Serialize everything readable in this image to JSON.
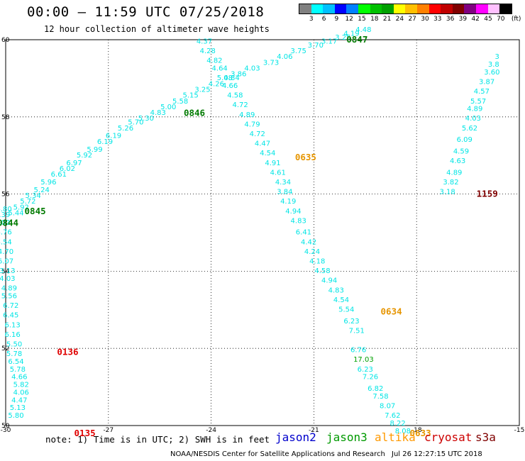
{
  "title": "00:00 – 11:59 UTC 07/25/2018",
  "subtitle": "12 hour collection of altimeter wave heights",
  "colorbar": {
    "colors": [
      "#808080",
      "#00ffff",
      "#00c0ff",
      "#0000ff",
      "#0080ff",
      "#00ff00",
      "#00c000",
      "#00a000",
      "#ffff00",
      "#ffc000",
      "#ff8000",
      "#ff0000",
      "#c00000",
      "#800000",
      "#800080",
      "#ff00ff",
      "#ffc0ff",
      "#000000"
    ],
    "labels": [
      "3",
      "6",
      "9",
      "12",
      "15",
      "18",
      "21",
      "24",
      "27",
      "30",
      "33",
      "36",
      "39",
      "42",
      "45",
      "70",
      "(ft)"
    ]
  },
  "map": {
    "lon_ticks": [
      "-30",
      "-27",
      "-24",
      "-21",
      "-18",
      "-15"
    ],
    "lat_ticks": [
      "60",
      "58",
      "56",
      "54",
      "52",
      "50"
    ],
    "lon_range": [
      -30,
      -15
    ],
    "lat_range": [
      50,
      60
    ],
    "grid": "dotted"
  },
  "tracks": [
    {
      "satellite": "jason3",
      "color": "#00e5e5",
      "points": [
        {
          "lon": -29.7,
          "lat": 50.2,
          "v": "5.80"
        },
        {
          "lon": -29.65,
          "lat": 50.4,
          "v": "5.13"
        },
        {
          "lon": -29.6,
          "lat": 50.6,
          "v": "4.47"
        },
        {
          "lon": -29.55,
          "lat": 50.8,
          "v": "4.06"
        },
        {
          "lon": -29.55,
          "lat": 51.0,
          "v": "5.82"
        },
        {
          "lon": -29.6,
          "lat": 51.2,
          "v": "4.66"
        },
        {
          "lon": -29.65,
          "lat": 51.4,
          "v": "5.78"
        },
        {
          "lon": -29.7,
          "lat": 51.6,
          "v": "6.54"
        },
        {
          "lon": -29.75,
          "lat": 51.8,
          "v": "5.78"
        },
        {
          "lon": -29.75,
          "lat": 52.05,
          "v": "5.50"
        },
        {
          "lon": -29.8,
          "lat": 52.3,
          "v": "6.16"
        },
        {
          "lon": -29.8,
          "lat": 52.55,
          "v": "6.13"
        },
        {
          "lon": -29.85,
          "lat": 52.8,
          "v": "6.45"
        },
        {
          "lon": -29.85,
          "lat": 53.05,
          "v": "6.72"
        },
        {
          "lon": -29.9,
          "lat": 53.3,
          "v": "5.56"
        },
        {
          "lon": -29.9,
          "lat": 53.5,
          "v": "4.89"
        },
        {
          "lon": -29.95,
          "lat": 53.75,
          "v": "4.03"
        },
        {
          "lon": -29.95,
          "lat": 53.95,
          "v": "3.13"
        },
        {
          "lon": -30.0,
          "lat": 54.2,
          "v": "6.07"
        },
        {
          "lon": -30.0,
          "lat": 54.45,
          "v": "4.70"
        },
        {
          "lon": -30.05,
          "lat": 54.7,
          "v": "4.54"
        },
        {
          "lon": -30.05,
          "lat": 54.95,
          "v": "4.76"
        },
        {
          "lon": -30.1,
          "lat": 55.2,
          "v": "5.02"
        },
        {
          "lon": -30.1,
          "lat": 55.4,
          "v": "6.39"
        },
        {
          "lon": -30.05,
          "lat": 55.55,
          "v": "4.80"
        }
      ]
    },
    {
      "satellite": "jason3",
      "color": "#00e5e5",
      "points": [
        {
          "lon": -29.7,
          "lat": 55.45,
          "v": "5.44"
        },
        {
          "lon": -29.55,
          "lat": 55.6,
          "v": "5.92"
        },
        {
          "lon": -29.35,
          "lat": 55.75,
          "v": "5.72"
        },
        {
          "lon": -29.2,
          "lat": 55.9,
          "v": "5.34"
        },
        {
          "lon": -28.95,
          "lat": 56.05,
          "v": "5.24"
        },
        {
          "lon": -28.75,
          "lat": 56.25,
          "v": "5.96"
        },
        {
          "lon": -28.45,
          "lat": 56.45,
          "v": "6.61"
        },
        {
          "lon": -28.2,
          "lat": 56.6,
          "v": "6.02"
        },
        {
          "lon": -28.0,
          "lat": 56.75,
          "v": "6.97"
        },
        {
          "lon": -27.7,
          "lat": 56.95,
          "v": "5.92"
        },
        {
          "lon": -27.4,
          "lat": 57.1,
          "v": "5.99"
        },
        {
          "lon": -27.1,
          "lat": 57.3,
          "v": "6.19"
        },
        {
          "lon": -26.85,
          "lat": 57.45,
          "v": "6.19"
        },
        {
          "lon": -26.5,
          "lat": 57.65,
          "v": "5.26"
        },
        {
          "lon": -26.2,
          "lat": 57.8,
          "v": "5.70"
        },
        {
          "lon": -25.9,
          "lat": 57.9,
          "v": "5.30"
        },
        {
          "lon": -25.55,
          "lat": 58.05,
          "v": "4.83"
        },
        {
          "lon": -25.25,
          "lat": 58.2,
          "v": "5.00"
        },
        {
          "lon": -24.9,
          "lat": 58.35,
          "v": "5.58"
        },
        {
          "lon": -24.6,
          "lat": 58.5,
          "v": "5.15"
        },
        {
          "lon": -24.25,
          "lat": 58.65,
          "v": "3.25"
        },
        {
          "lon": -23.85,
          "lat": 58.8,
          "v": "4.26"
        },
        {
          "lon": -23.4,
          "lat": 58.95,
          "v": "4.84"
        },
        {
          "lon": -23.2,
          "lat": 59.05,
          "v": "3.86"
        },
        {
          "lon": -22.8,
          "lat": 59.2,
          "v": "4.03"
        },
        {
          "lon": -22.25,
          "lat": 59.35,
          "v": "3.73"
        },
        {
          "lon": -21.85,
          "lat": 59.5,
          "v": "4.06"
        },
        {
          "lon": -21.45,
          "lat": 59.65,
          "v": "3.75"
        },
        {
          "lon": -20.95,
          "lat": 59.8,
          "v": "3.70"
        },
        {
          "lon": -20.55,
          "lat": 59.9,
          "v": "3.17"
        },
        {
          "lon": -20.15,
          "lat": 60.0,
          "v": "3.25"
        },
        {
          "lon": -19.9,
          "lat": 60.1,
          "v": "4.19"
        },
        {
          "lon": -19.55,
          "lat": 60.2,
          "v": "4.48"
        }
      ]
    },
    {
      "satellite": "jason3",
      "color": "#00e5e5",
      "points": [
        {
          "lon": -24.2,
          "lat": 59.9,
          "v": "4.37"
        },
        {
          "lon": -24.1,
          "lat": 59.65,
          "v": "4.28"
        },
        {
          "lon": -23.9,
          "lat": 59.4,
          "v": "4.82"
        },
        {
          "lon": -23.75,
          "lat": 59.2,
          "v": "4.64"
        },
        {
          "lon": -23.6,
          "lat": 58.95,
          "v": "5.08"
        },
        {
          "lon": -23.45,
          "lat": 58.75,
          "v": "4.66"
        },
        {
          "lon": -23.3,
          "lat": 58.5,
          "v": "4.58"
        },
        {
          "lon": -23.15,
          "lat": 58.25,
          "v": "4.72"
        },
        {
          "lon": -22.95,
          "lat": 58.0,
          "v": "4.89"
        },
        {
          "lon": -22.8,
          "lat": 57.75,
          "v": "4.79"
        },
        {
          "lon": -22.65,
          "lat": 57.5,
          "v": "4.72"
        },
        {
          "lon": -22.5,
          "lat": 57.25,
          "v": "4.47"
        },
        {
          "lon": -22.35,
          "lat": 57.0,
          "v": "4.54"
        },
        {
          "lon": -22.2,
          "lat": 56.75,
          "v": "4.91"
        },
        {
          "lon": -22.05,
          "lat": 56.5,
          "v": "4.61"
        },
        {
          "lon": -21.9,
          "lat": 56.25,
          "v": "4.34"
        },
        {
          "lon": -21.85,
          "lat": 56.0,
          "v": "3.84"
        },
        {
          "lon": -21.75,
          "lat": 55.75,
          "v": "4.19"
        },
        {
          "lon": -21.6,
          "lat": 55.5,
          "v": "4.94"
        },
        {
          "lon": -21.45,
          "lat": 55.25,
          "v": "4.83"
        },
        {
          "lon": -21.3,
          "lat": 54.95,
          "v": "6.41"
        },
        {
          "lon": -21.15,
          "lat": 54.7,
          "v": "4.42"
        },
        {
          "lon": -21.05,
          "lat": 54.45,
          "v": "4.24"
        },
        {
          "lon": -20.9,
          "lat": 54.2,
          "v": "4.18"
        },
        {
          "lon": -20.75,
          "lat": 53.95,
          "v": "4.58"
        },
        {
          "lon": -20.55,
          "lat": 53.7,
          "v": "4.94"
        },
        {
          "lon": -20.35,
          "lat": 53.45,
          "v": "4.83"
        },
        {
          "lon": -20.2,
          "lat": 53.2,
          "v": "4.54"
        },
        {
          "lon": -20.05,
          "lat": 52.95,
          "v": "5.54"
        },
        {
          "lon": -19.9,
          "lat": 52.65,
          "v": "6.23"
        },
        {
          "lon": -19.75,
          "lat": 52.4,
          "v": "7.51"
        }
      ]
    },
    {
      "satellite": "jason3",
      "color": "#00e5e5",
      "points": [
        {
          "lon": -19.7,
          "lat": 51.9,
          "v": "6.76"
        },
        {
          "lon": -19.5,
          "lat": 51.4,
          "v": "6.23"
        },
        {
          "lon": -19.35,
          "lat": 51.2,
          "v": "7.26"
        },
        {
          "lon": -19.2,
          "lat": 50.9,
          "v": "6.82"
        },
        {
          "lon": -19.05,
          "lat": 50.7,
          "v": "7.58"
        },
        {
          "lon": -18.85,
          "lat": 50.45,
          "v": "8.07"
        },
        {
          "lon": -18.7,
          "lat": 50.2,
          "v": "7.62"
        },
        {
          "lon": -18.55,
          "lat": 50.0,
          "v": "8.22"
        },
        {
          "lon": -18.4,
          "lat": 49.8,
          "v": "8.08"
        }
      ]
    },
    {
      "satellite": "jason3",
      "color": "#00a000",
      "points": [
        {
          "lon": -19.55,
          "lat": 51.65,
          "v": "17.03"
        }
      ]
    },
    {
      "satellite": "jason3",
      "color": "#00e5e5",
      "points": [
        {
          "lon": -17.1,
          "lat": 56.0,
          "v": "3.18"
        },
        {
          "lon": -17.0,
          "lat": 56.25,
          "v": "3.82"
        },
        {
          "lon": -16.9,
          "lat": 56.5,
          "v": "4.89"
        },
        {
          "lon": -16.8,
          "lat": 56.8,
          "v": "4.63"
        },
        {
          "lon": -16.7,
          "lat": 57.05,
          "v": "4.59"
        },
        {
          "lon": -16.6,
          "lat": 57.35,
          "v": "6.09"
        },
        {
          "lon": -16.45,
          "lat": 57.65,
          "v": "5.62"
        },
        {
          "lon": -16.35,
          "lat": 57.9,
          "v": "4.03"
        },
        {
          "lon": -16.3,
          "lat": 58.15,
          "v": "4.89"
        },
        {
          "lon": -16.2,
          "lat": 58.35,
          "v": "5.57"
        },
        {
          "lon": -16.1,
          "lat": 58.6,
          "v": "4.57"
        },
        {
          "lon": -15.95,
          "lat": 58.85,
          "v": "3.87"
        },
        {
          "lon": -15.8,
          "lat": 59.1,
          "v": "3.60"
        },
        {
          "lon": -15.75,
          "lat": 59.3,
          "v": "3.8"
        },
        {
          "lon": -15.65,
          "lat": 59.5,
          "v": "3"
        }
      ]
    }
  ],
  "time_labels": [
    {
      "text": "0847",
      "lon": -20.05,
      "lat": 60.0,
      "color": "#007a00"
    },
    {
      "text": "0846",
      "lon": -24.8,
      "lat": 58.1,
      "color": "#007a00"
    },
    {
      "text": "0845",
      "lon": -29.45,
      "lat": 55.55,
      "color": "#007a00"
    },
    {
      "text": "0844",
      "lon": -30.25,
      "lat": 55.25,
      "color": "#007a00"
    },
    {
      "text": "0635",
      "lon": -21.55,
      "lat": 56.95,
      "color": "#e69500"
    },
    {
      "text": "0634",
      "lon": -19.05,
      "lat": 52.95,
      "color": "#e69500"
    },
    {
      "text": "0633",
      "lon": -18.2,
      "lat": 49.8,
      "color": "#e69500"
    },
    {
      "text": "0136",
      "lon": -28.5,
      "lat": 51.9,
      "color": "#e00000"
    },
    {
      "text": "0135",
      "lon": -28.0,
      "lat": 49.8,
      "color": "#e00000"
    },
    {
      "text": "1159",
      "lon": -16.25,
      "lat": 56.0,
      "color": "#800000"
    }
  ],
  "note": "note: 1) Time is in UTC; 2) SWH is in feet",
  "satellites": [
    {
      "name": "jason2",
      "color": "#0000cc"
    },
    {
      "name": "jason3",
      "color": "#009900"
    },
    {
      "name": "altika",
      "color": "#ff9900"
    },
    {
      "name": "cryosat",
      "color": "#cc0000"
    },
    {
      "name": "s3a",
      "color": "#800000"
    }
  ],
  "footer": {
    "credit": "NOAA/NESDIS Center for Satellite Applications and Research",
    "timestamp": "Jul 26 12:27:15 UTC 2018"
  }
}
